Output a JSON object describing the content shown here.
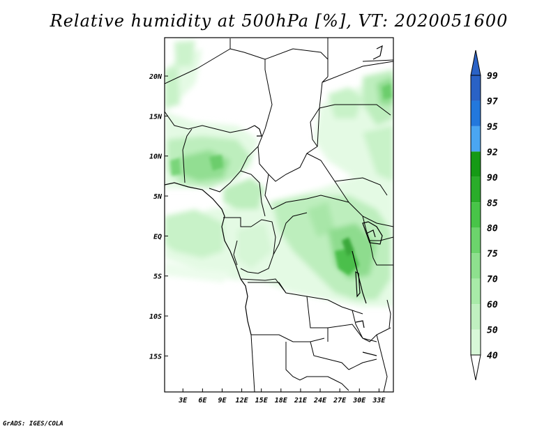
{
  "title": "Relative humidity at 500hPa [%], VT: 2020051600",
  "credit": "GrADS: IGES/COLA",
  "colors": {
    "levels": [
      "#f0fff0",
      "#d8f8d8",
      "#c0f0c0",
      "#a8eaa8",
      "#8ee08e",
      "#6cd46c",
      "#48c448",
      "#2aad2a",
      "#159a15",
      "#4aa6f2",
      "#2378dc",
      "#2a62c6"
    ]
  },
  "chart_data": {
    "type": "heatmap",
    "title": "Relative humidity at 500hPa [%], VT: 2020051600",
    "x_ticks": [
      "3E",
      "6E",
      "9E",
      "12E",
      "15E",
      "18E",
      "21E",
      "24E",
      "27E",
      "30E",
      "33E"
    ],
    "x_tick_values": [
      3,
      6,
      9,
      12,
      15,
      18,
      21,
      24,
      27,
      30,
      33
    ],
    "y_ticks": [
      "20N",
      "15N",
      "10N",
      "5N",
      "EQ",
      "5S",
      "10S",
      "15S"
    ],
    "y_tick_values": [
      20,
      15,
      10,
      5,
      0,
      -5,
      -10,
      -15
    ],
    "lon_range": [
      0.2,
      35.2
    ],
    "lat_range": [
      -19.5,
      24.8
    ],
    "colorbar_levels": [
      "99",
      "97",
      "95",
      "92",
      "90",
      "85",
      "80",
      "75",
      "70",
      "60",
      "50",
      "40"
    ]
  }
}
